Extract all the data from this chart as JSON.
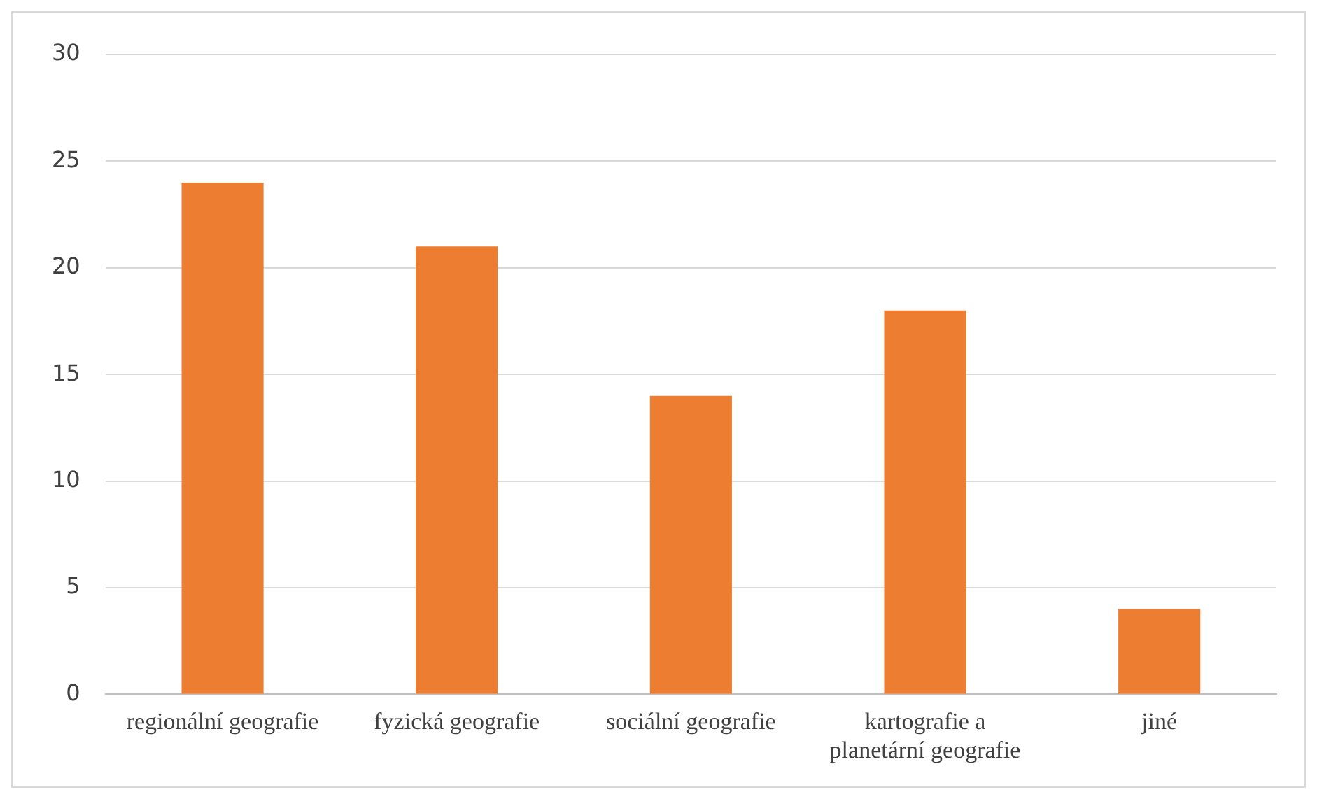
{
  "chart_data": {
    "type": "bar",
    "categories": [
      "regionální geografie",
      "fyzická geografie",
      "sociální geografie",
      "kartografie a planetární geografie",
      "jiné"
    ],
    "values": [
      24,
      21,
      14,
      18,
      4
    ],
    "color": "#ed7d31",
    "ylim": [
      0,
      30
    ],
    "yticks": [
      0,
      5,
      10,
      15,
      20,
      25,
      30
    ],
    "grid": "y",
    "legend": false
  }
}
